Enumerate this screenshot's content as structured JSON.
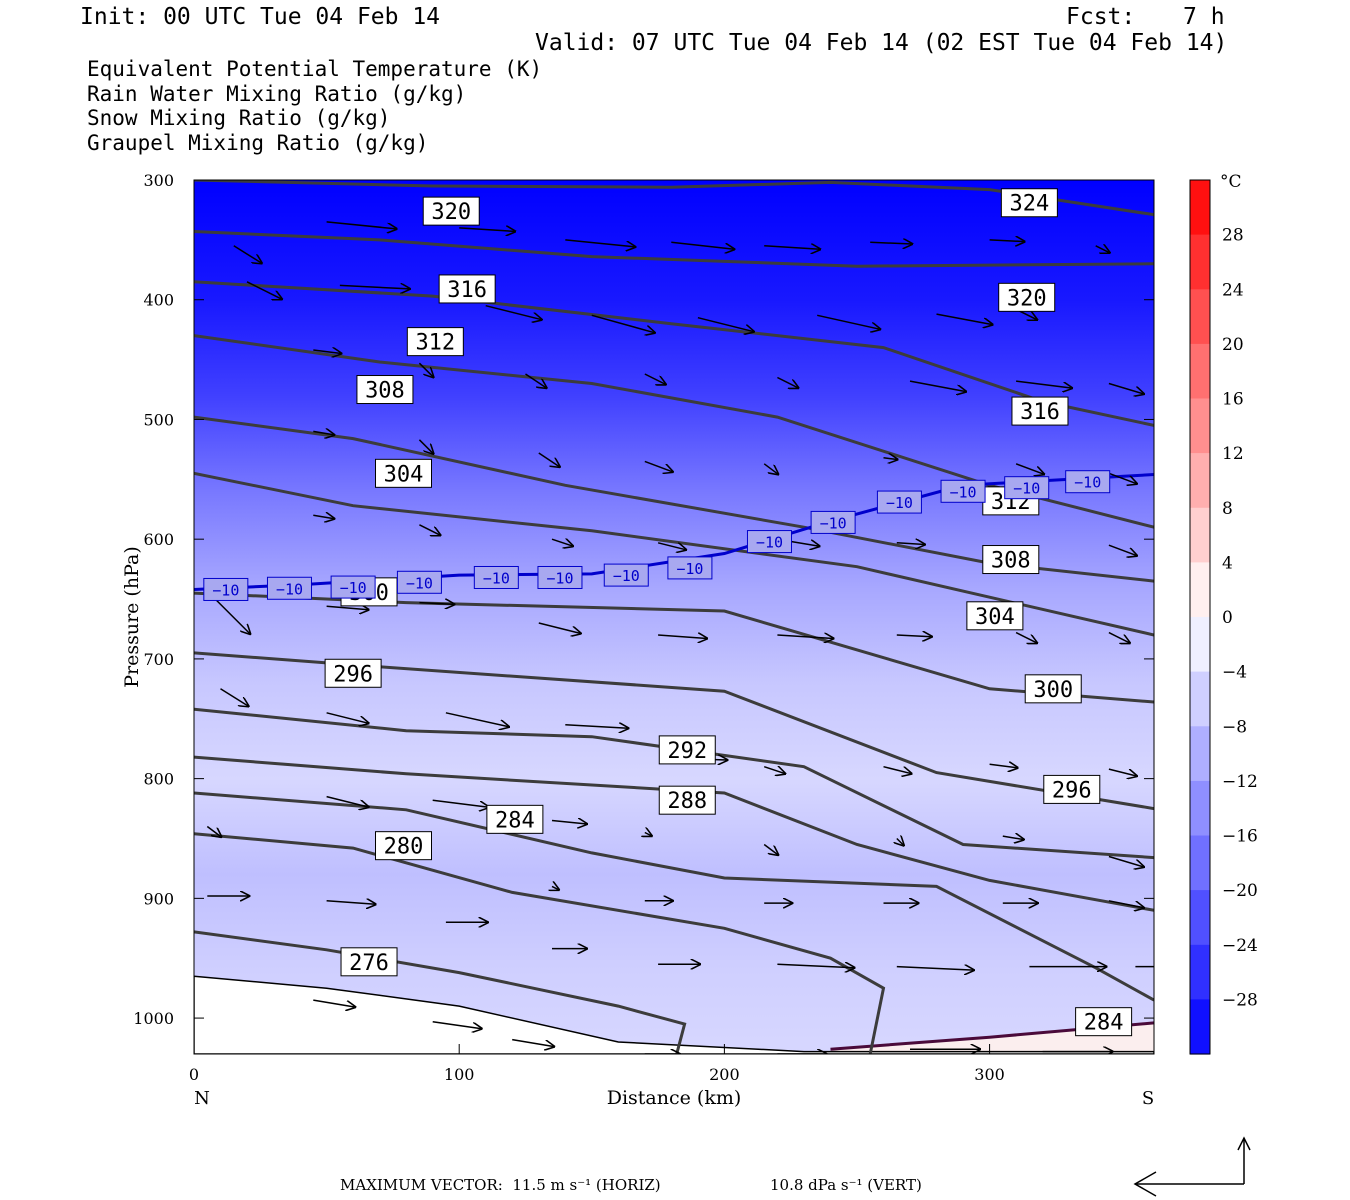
{
  "header": {
    "init": "Init: 00 UTC Tue 04 Feb 14",
    "fcst_label": "Fcst:",
    "fcst_value": "7 h",
    "valid": "Valid: 07 UTC Tue 04 Feb 14 (02 EST Tue 04 Feb 14)"
  },
  "fields": [
    {
      "label": "Equivalent Potential Temperature (K)",
      "color": "#555555"
    },
    {
      "label": "Rain Water Mixing Ratio (g/kg)",
      "color": "#008000"
    },
    {
      "label": "Snow Mixing Ratio (g/kg)",
      "color": "#f4a460"
    },
    {
      "label": "Graupel Mixing Ratio (g/kg)",
      "color": "#ee82ee"
    }
  ],
  "colors": {
    "theta_e_contour": "#3c3c3c",
    "isotherm_minus10": "#0000cc",
    "vector": "#000000",
    "freezing_region": "#fbeeee",
    "freezing_line": "#4a0a3a"
  },
  "chart_data": {
    "type": "cross-section",
    "xlabel": "Distance (km)",
    "ylabel": "Pressure (hPa)",
    "xlim": [
      0,
      362
    ],
    "ylim": [
      1030,
      300
    ],
    "x_ticks": [
      0,
      100,
      200,
      300
    ],
    "y_ticks": [
      300,
      400,
      500,
      600,
      700,
      800,
      900,
      1000
    ],
    "end_labels": {
      "left": "N",
      "right": "S"
    },
    "colorbar": {
      "unit": "°C",
      "range": [
        -32,
        32
      ],
      "tick_labels": [
        "28",
        "24",
        "20",
        "16",
        "12",
        "8",
        "4",
        "0",
        "−4",
        "−8",
        "−12",
        "−16",
        "−20",
        "−24",
        "−28"
      ],
      "tick_values": [
        28,
        24,
        20,
        16,
        12,
        8,
        4,
        0,
        -4,
        -8,
        -12,
        -16,
        -20,
        -24,
        -28
      ]
    },
    "temperature_field_bands": [
      {
        "p": 300,
        "t": -32
      },
      {
        "p": 400,
        "t": -29
      },
      {
        "p": 480,
        "t": -24
      },
      {
        "p": 560,
        "t": -17
      },
      {
        "p": 640,
        "t": -11
      },
      {
        "p": 720,
        "t": -7
      },
      {
        "p": 800,
        "t": -5
      },
      {
        "p": 880,
        "t": -8
      },
      {
        "p": 960,
        "t": -6
      },
      {
        "p": 1030,
        "t": -5
      }
    ],
    "theta_e_contours": [
      {
        "value": 324,
        "points": [
          [
            0,
            300
          ],
          [
            90,
            305
          ],
          [
            180,
            306
          ],
          [
            240,
            302
          ],
          [
            300,
            308
          ],
          [
            362,
            329
          ]
        ],
        "labels": [
          [
            315,
            319
          ]
        ]
      },
      {
        "value": 320,
        "points": [
          [
            0,
            343
          ],
          [
            70,
            350
          ],
          [
            150,
            364
          ],
          [
            250,
            372
          ],
          [
            362,
            370
          ]
        ],
        "labels": [
          [
            97,
            326
          ],
          [
            314,
            398
          ]
        ]
      },
      {
        "value": 316,
        "points": [
          [
            0,
            385
          ],
          [
            90,
            397
          ],
          [
            180,
            420
          ],
          [
            260,
            440
          ],
          [
            320,
            485
          ],
          [
            362,
            505
          ]
        ],
        "labels": [
          [
            103,
            391
          ],
          [
            319,
            493
          ]
        ]
      },
      {
        "value": 312,
        "points": [
          [
            0,
            430
          ],
          [
            70,
            452
          ],
          [
            150,
            470
          ],
          [
            220,
            498
          ],
          [
            300,
            555
          ],
          [
            362,
            590
          ]
        ],
        "labels": [
          [
            91,
            435
          ],
          [
            308,
            568
          ]
        ]
      },
      {
        "value": 308,
        "points": [
          [
            0,
            498
          ],
          [
            60,
            516
          ],
          [
            140,
            555
          ],
          [
            230,
            590
          ],
          [
            300,
            620
          ],
          [
            362,
            635
          ]
        ],
        "labels": [
          [
            72,
            475
          ],
          [
            308,
            617
          ]
        ]
      },
      {
        "value": 304,
        "points": [
          [
            0,
            545
          ],
          [
            60,
            572
          ],
          [
            150,
            593
          ],
          [
            250,
            623
          ],
          [
            362,
            680
          ]
        ],
        "labels": [
          [
            79,
            545
          ],
          [
            302,
            664
          ]
        ]
      },
      {
        "value": 300,
        "points": [
          [
            0,
            645
          ],
          [
            80,
            653
          ],
          [
            200,
            660
          ],
          [
            300,
            725
          ],
          [
            362,
            736
          ]
        ],
        "labels": [
          [
            66,
            644
          ],
          [
            324,
            725
          ]
        ]
      },
      {
        "value": 296,
        "points": [
          [
            0,
            695
          ],
          [
            60,
            705
          ],
          [
            200,
            727
          ],
          [
            280,
            795
          ],
          [
            362,
            825
          ]
        ],
        "labels": [
          [
            60,
            712
          ],
          [
            331,
            809
          ]
        ]
      },
      {
        "value": 292,
        "points": [
          [
            0,
            742
          ],
          [
            80,
            760
          ],
          [
            150,
            765
          ],
          [
            230,
            790
          ],
          [
            290,
            855
          ],
          [
            362,
            866
          ]
        ],
        "labels": [
          [
            186,
            776
          ]
        ]
      },
      {
        "value": 288,
        "points": [
          [
            0,
            782
          ],
          [
            80,
            796
          ],
          [
            200,
            812
          ],
          [
            250,
            855
          ],
          [
            300,
            885
          ],
          [
            362,
            910
          ]
        ],
        "labels": [
          [
            186,
            818
          ]
        ]
      },
      {
        "value": 284,
        "points": [
          [
            0,
            812
          ],
          [
            80,
            826
          ],
          [
            150,
            862
          ],
          [
            200,
            883
          ],
          [
            280,
            890
          ],
          [
            340,
            958
          ],
          [
            362,
            985
          ]
        ],
        "labels": [
          [
            121,
            834
          ],
          [
            343,
            1003
          ]
        ]
      },
      {
        "value": 280,
        "points": [
          [
            0,
            846
          ],
          [
            60,
            858
          ],
          [
            120,
            895
          ],
          [
            200,
            925
          ],
          [
            240,
            950
          ],
          [
            260,
            975
          ],
          [
            255,
            1030
          ]
        ],
        "labels": [
          [
            79,
            856
          ]
        ]
      },
      {
        "value": 276,
        "points": [
          [
            0,
            928
          ],
          [
            50,
            943
          ],
          [
            100,
            962
          ],
          [
            160,
            990
          ],
          [
            185,
            1005
          ],
          [
            182,
            1030
          ]
        ],
        "labels": [
          [
            66,
            953
          ]
        ]
      }
    ],
    "isotherm": {
      "value": -10,
      "label": "−10",
      "points": [
        [
          0,
          642
        ],
        [
          40,
          638
        ],
        [
          100,
          630
        ],
        [
          150,
          629
        ],
        [
          200,
          612
        ],
        [
          240,
          585
        ],
        [
          290,
          555
        ],
        [
          362,
          546
        ]
      ],
      "label_positions": [
        [
          12,
          642
        ],
        [
          36,
          641
        ],
        [
          60,
          640
        ],
        [
          85,
          636
        ],
        [
          114,
          632
        ],
        [
          138,
          632
        ],
        [
          163,
          630
        ],
        [
          187,
          624
        ],
        [
          217,
          602
        ],
        [
          241,
          586
        ],
        [
          266,
          569
        ],
        [
          290,
          560
        ],
        [
          314,
          557
        ],
        [
          337,
          552
        ]
      ]
    },
    "freezing_region": {
      "points": [
        [
          240,
          1026
        ],
        [
          300,
          1016
        ],
        [
          362,
          1004
        ],
        [
          362,
          1030
        ],
        [
          240,
          1030
        ]
      ],
      "label": "0",
      "label_pos": [
        341,
        1000
      ]
    },
    "terrain": {
      "points": [
        [
          0,
          1030
        ],
        [
          0,
          965
        ],
        [
          50,
          975
        ],
        [
          100,
          990
        ],
        [
          160,
          1020
        ],
        [
          230,
          1028
        ],
        [
          362,
          1028
        ],
        [
          362,
          1030
        ]
      ]
    },
    "vectors": [
      [
        15,
        355,
        4,
        5
      ],
      [
        50,
        335,
        10,
        2
      ],
      [
        100,
        340,
        8,
        1
      ],
      [
        140,
        350,
        10,
        2
      ],
      [
        180,
        352,
        9,
        2
      ],
      [
        215,
        355,
        8,
        1
      ],
      [
        255,
        352,
        6,
        0.5
      ],
      [
        300,
        350,
        5,
        0.5
      ],
      [
        340,
        355,
        2,
        2
      ],
      [
        20,
        385,
        5,
        5
      ],
      [
        55,
        388,
        10,
        1
      ],
      [
        110,
        405,
        8,
        4
      ],
      [
        150,
        413,
        9,
        5
      ],
      [
        190,
        415,
        8,
        4
      ],
      [
        235,
        413,
        9,
        4
      ],
      [
        280,
        412,
        8,
        3
      ],
      [
        310,
        408,
        3,
        3
      ],
      [
        45,
        442,
        4,
        1
      ],
      [
        85,
        453,
        2,
        4
      ],
      [
        125,
        462,
        3,
        4
      ],
      [
        170,
        462,
        3,
        3
      ],
      [
        220,
        465,
        3,
        3
      ],
      [
        270,
        468,
        8,
        3
      ],
      [
        310,
        468,
        8,
        2
      ],
      [
        345,
        470,
        5,
        3
      ],
      [
        45,
        510,
        3,
        1
      ],
      [
        85,
        517,
        2,
        4
      ],
      [
        130,
        528,
        3,
        4
      ],
      [
        170,
        535,
        4,
        3
      ],
      [
        215,
        537,
        2,
        3
      ],
      [
        260,
        532,
        2,
        0.5
      ],
      [
        310,
        537,
        4,
        3
      ],
      [
        345,
        545,
        4,
        3
      ],
      [
        45,
        580,
        3,
        1
      ],
      [
        85,
        588,
        3,
        3
      ],
      [
        135,
        600,
        3,
        2
      ],
      [
        175,
        603,
        4,
        2
      ],
      [
        220,
        600,
        6,
        2
      ],
      [
        265,
        603,
        4,
        0.5
      ],
      [
        345,
        605,
        4,
        3
      ],
      [
        8,
        650,
        5,
        10
      ],
      [
        50,
        656,
        6,
        1
      ],
      [
        85,
        653,
        5,
        0.5
      ],
      [
        130,
        670,
        6,
        3
      ],
      [
        175,
        680,
        7,
        1
      ],
      [
        220,
        680,
        8,
        1
      ],
      [
        265,
        680,
        5,
        0.5
      ],
      [
        310,
        678,
        3,
        3
      ],
      [
        345,
        678,
        3,
        3
      ],
      [
        10,
        725,
        4,
        5
      ],
      [
        50,
        745,
        6,
        3
      ],
      [
        95,
        745,
        9,
        4
      ],
      [
        140,
        755,
        9,
        1
      ],
      [
        180,
        783,
        8,
        0.5
      ],
      [
        215,
        790,
        3,
        2
      ],
      [
        260,
        790,
        4,
        2
      ],
      [
        300,
        788,
        4,
        1
      ],
      [
        345,
        792,
        4,
        2
      ],
      [
        5,
        840,
        2,
        3
      ],
      [
        50,
        815,
        6,
        3
      ],
      [
        90,
        818,
        8,
        2
      ],
      [
        135,
        835,
        5,
        1
      ],
      [
        170,
        845,
        1,
        1
      ],
      [
        215,
        855,
        2,
        3
      ],
      [
        265,
        850,
        1,
        2
      ],
      [
        305,
        848,
        3,
        1
      ],
      [
        345,
        865,
        5,
        3
      ],
      [
        5,
        898,
        6,
        0
      ],
      [
        50,
        902,
        7,
        1
      ],
      [
        95,
        920,
        6,
        0
      ],
      [
        135,
        890,
        1,
        1
      ],
      [
        170,
        902,
        4,
        0
      ],
      [
        215,
        904,
        4,
        0
      ],
      [
        260,
        904,
        5,
        0
      ],
      [
        305,
        904,
        5,
        0
      ],
      [
        345,
        902,
        5,
        2
      ],
      [
        135,
        942,
        5,
        0
      ],
      [
        175,
        955,
        6,
        0
      ],
      [
        220,
        955,
        11,
        1
      ],
      [
        265,
        957,
        11,
        1
      ],
      [
        315,
        957,
        11,
        0
      ],
      [
        355,
        957,
        5,
        0
      ],
      [
        45,
        985,
        6,
        2
      ],
      [
        90,
        1003,
        7,
        2
      ],
      [
        120,
        1018,
        6,
        2
      ],
      [
        170,
        1030,
        5,
        0
      ],
      [
        220,
        1030,
        7,
        0
      ],
      [
        270,
        1026,
        10,
        0
      ],
      [
        320,
        1028,
        10,
        0
      ]
    ],
    "reference_vector": {
      "horiz_label": "MAXIMUM VECTOR:  11.5 m s⁻¹ (HORIZ)",
      "vert_label": "10.8 dPa s⁻¹ (VERT)"
    }
  }
}
